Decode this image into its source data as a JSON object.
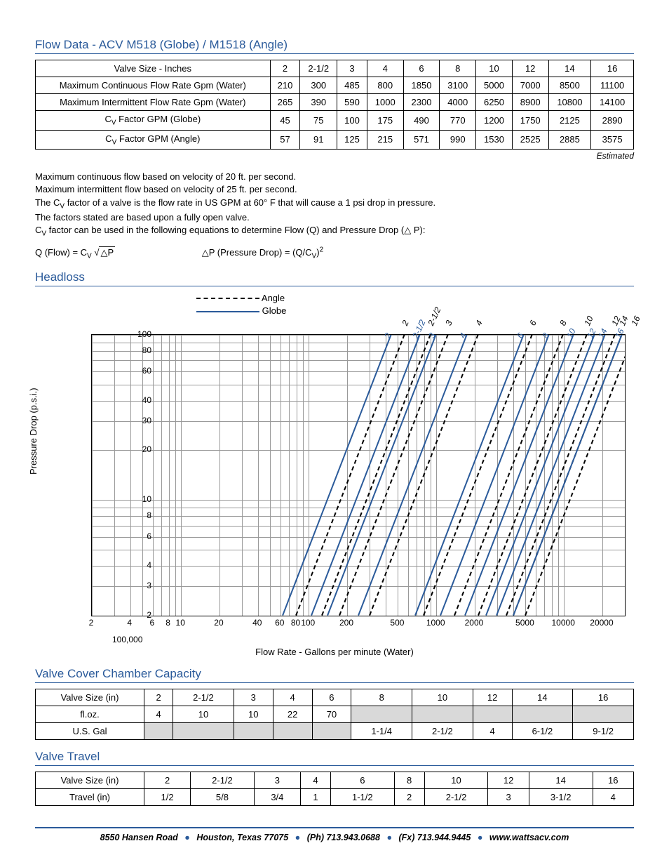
{
  "title1": "Flow Data - ACV M518 (Globe) / M1518 (Angle)",
  "table1": {
    "headers": [
      "Valve Size - Inches",
      "2",
      "2-1/2",
      "3",
      "4",
      "6",
      "8",
      "10",
      "12",
      "14",
      "16"
    ],
    "rows": [
      {
        "label": "Maximum Continuous Flow Rate Gpm (Water)",
        "vals": [
          "210",
          "300",
          "485",
          "800",
          "1850",
          "3100",
          "5000",
          "7000",
          "8500",
          "11100"
        ]
      },
      {
        "label": "Maximum Intermittent Flow Rate Gpm (Water)",
        "vals": [
          "265",
          "390",
          "590",
          "1000",
          "2300",
          "4000",
          "6250",
          "8900",
          "10800",
          "14100"
        ]
      },
      {
        "label": "C_V Factor GPM (Globe)",
        "vals": [
          "45",
          "75",
          "100",
          "175",
          "490",
          "770",
          "1200",
          "1750",
          "2125",
          "2890"
        ]
      },
      {
        "label": "C_V Factor GPM (Angle)",
        "vals": [
          "57",
          "91",
          "125",
          "215",
          "571",
          "990",
          "1530",
          "2525",
          "2885",
          "3575"
        ]
      }
    ],
    "footnote": "Estimated"
  },
  "notes": [
    "Maximum continuous flow based on velocity of 20 ft. per second.",
    "Maximum intermittent flow based on velocity of 25 ft. per second.",
    "The C_V factor of a valve is the flow rate in US GPM at 60° F that will cause a 1 psi drop in pressure.",
    "The factors stated are based upon a fully open valve.",
    "C_V factor can be used in the following equations to determine Flow (Q) and Pressure Drop (△ P):"
  ],
  "eq1_label": "Q (Flow) = C",
  "eq1_label2": " √",
  "eq1_under": "△P",
  "eq2_label": "△P (Pressure Drop) = (Q/C",
  "eq2_label2": ")",
  "title2": "Headloss",
  "legend_angle": "Angle",
  "legend_globe": "Globe",
  "y_axis": "Pressure Drop (p.s.i.)",
  "x_axis": "Flow Rate - Gallons per minute (Water)",
  "x_sublabel": "100,000",
  "chart": {
    "x_log_min": 0.301,
    "x_log_max": 4.477,
    "y_log_min": 0.301,
    "y_log_max": 2.0,
    "y_ticks": [
      {
        "v": 100,
        "log": 2.0
      },
      {
        "v": 80,
        "log": 1.903
      },
      {
        "v": 60,
        "log": 1.778
      },
      {
        "v": 40,
        "log": 1.602
      },
      {
        "v": 30,
        "log": 1.477
      },
      {
        "v": 20,
        "log": 1.301
      },
      {
        "v": 10,
        "log": 1.0
      },
      {
        "v": 8,
        "log": 0.903
      },
      {
        "v": 6,
        "log": 0.778
      },
      {
        "v": 4,
        "log": 0.602
      },
      {
        "v": 3,
        "log": 0.477
      },
      {
        "v": 2,
        "log": 0.301
      }
    ],
    "x_ticks": [
      {
        "v": "2",
        "log": 0.301
      },
      {
        "v": "4",
        "log": 0.602
      },
      {
        "v": "6",
        "log": 0.778
      },
      {
        "v": "8",
        "log": 0.903
      },
      {
        "v": "10",
        "log": 1.0
      },
      {
        "v": "20",
        "log": 1.301
      },
      {
        "v": "40",
        "log": 1.602
      },
      {
        "v": "60",
        "log": 1.778
      },
      {
        "v": "80",
        "log": 1.903
      },
      {
        "v": "100",
        "log": 2.0
      },
      {
        "v": "200",
        "log": 2.301
      },
      {
        "v": "500",
        "log": 2.699
      },
      {
        "v": "1000",
        "log": 3.0
      },
      {
        "v": "2000",
        "log": 3.301
      },
      {
        "v": "5000",
        "log": 3.699
      },
      {
        "v": "10000",
        "log": 4.0
      },
      {
        "v": "20000",
        "log": 4.301
      }
    ],
    "vgrids_log": [
      0.301,
      0.477,
      0.602,
      0.699,
      0.778,
      0.845,
      0.903,
      0.954,
      1.0,
      1.301,
      1.477,
      1.602,
      1.699,
      1.778,
      1.845,
      1.903,
      1.954,
      2.0,
      2.301,
      2.477,
      2.602,
      2.699,
      2.778,
      2.845,
      2.903,
      2.954,
      3.0,
      3.301,
      3.477,
      3.602,
      3.699,
      3.778,
      3.845,
      3.903,
      3.954,
      4.0,
      4.301,
      4.477
    ],
    "hgrids_log": [
      0.301,
      0.477,
      0.602,
      0.699,
      0.778,
      0.845,
      0.903,
      0.954,
      1.0,
      1.301,
      1.477,
      1.602,
      1.699,
      1.778,
      1.845,
      1.903,
      1.954,
      2.0
    ],
    "sizes": [
      {
        "label": "2",
        "cv_globe": 45,
        "cv_angle": 57
      },
      {
        "label": "2-1/2",
        "cv_globe": 75,
        "cv_angle": 91
      },
      {
        "label": "3",
        "cv_globe": 100,
        "cv_angle": 125
      },
      {
        "label": "4",
        "cv_globe": 175,
        "cv_angle": 215
      },
      {
        "label": "6",
        "cv_globe": 490,
        "cv_angle": 571
      },
      {
        "label": "8",
        "cv_globe": 770,
        "cv_angle": 990
      },
      {
        "label": "10",
        "cv_globe": 1200,
        "cv_angle": 1530
      },
      {
        "label": "12",
        "cv_globe": 1750,
        "cv_angle": 2525
      },
      {
        "label": "14",
        "cv_globe": 2125,
        "cv_angle": 2885
      },
      {
        "label": "16",
        "cv_globe": 2890,
        "cv_angle": 3575
      }
    ],
    "globe_color": "#2a5a9a",
    "angle_color": "#000000"
  },
  "title3": "Valve Cover Chamber Capacity",
  "table3": {
    "headers": [
      "Valve Size (in)",
      "2",
      "2-1/2",
      "3",
      "4",
      "6",
      "8",
      "10",
      "12",
      "14",
      "16"
    ],
    "rows": [
      {
        "label": "fl.oz.",
        "vals": [
          "4",
          "10",
          "10",
          "22",
          "70",
          "",
          "",
          "",
          "",
          ""
        ],
        "shade_from": 5
      },
      {
        "label": "U.S. Gal",
        "vals": [
          "",
          "",
          "",
          "",
          "",
          "1-1/4",
          "2-1/2",
          "4",
          "6-1/2",
          "9-1/2"
        ],
        "shade_to": 5
      }
    ]
  },
  "title4": "Valve Travel",
  "table4": {
    "headers": [
      "Valve Size (in)",
      "2",
      "2-1/2",
      "3",
      "4",
      "6",
      "8",
      "10",
      "12",
      "14",
      "16"
    ],
    "rows": [
      {
        "label": "Travel (in)",
        "vals": [
          "1/2",
          "5/8",
          "3/4",
          "1",
          "1-1/2",
          "2",
          "2-1/2",
          "3",
          "3-1/2",
          "4"
        ]
      }
    ]
  },
  "footer": {
    "addr": "8550 Hansen Road",
    "city": "Houston, Texas 77075",
    "ph": "(Ph) 713.943.0688",
    "fx": "(Fx) 713.944.9445",
    "web": "www.wattsacv.com"
  }
}
